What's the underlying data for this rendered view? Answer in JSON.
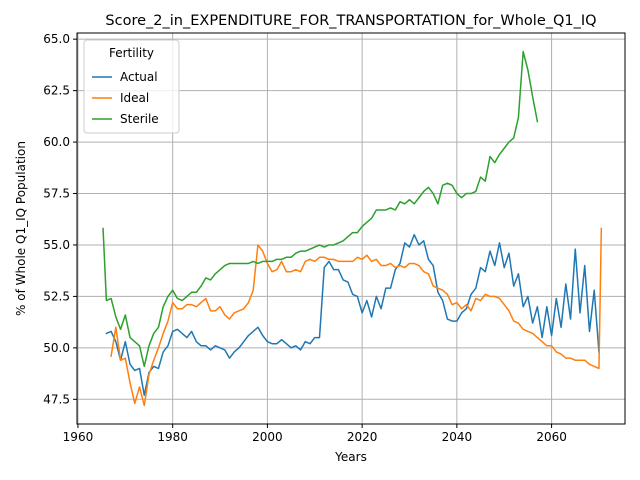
{
  "chart_data": {
    "type": "line",
    "title": "Score_2_in_EXPENDITURE_FOR_TRANSPORTATION_for_Whole_Q1_IQ",
    "xlabel": "Years",
    "ylabel": "% of Whole Q1_IQ Population",
    "xlim": [
      1959.8,
      2075.5
    ],
    "ylim": [
      46.3,
      65.3
    ],
    "xticks": [
      1960,
      1980,
      2000,
      2020,
      2040,
      2060
    ],
    "yticks": [
      47.5,
      50.0,
      52.5,
      55.0,
      57.5,
      60.0,
      62.5,
      65.0
    ],
    "grid": true,
    "legend": {
      "title": "Fertility",
      "placement": "upper-left"
    },
    "series": [
      {
        "name": "Actual",
        "color": "#1f77b4",
        "points": [
          [
            1966,
            50.7
          ],
          [
            1967,
            50.8
          ],
          [
            1968,
            50.3
          ],
          [
            1969,
            49.4
          ],
          [
            1970,
            50.3
          ],
          [
            1971,
            49.2
          ],
          [
            1972,
            48.9
          ],
          [
            1973,
            49.0
          ],
          [
            1974,
            47.7
          ],
          [
            1975,
            48.8
          ],
          [
            1976,
            49.1
          ],
          [
            1977,
            49.0
          ],
          [
            1978,
            49.8
          ],
          [
            1979,
            50.1
          ],
          [
            1980,
            50.8
          ],
          [
            1981,
            50.9
          ],
          [
            1982,
            50.7
          ],
          [
            1983,
            50.5
          ],
          [
            1984,
            50.8
          ],
          [
            1985,
            50.3
          ],
          [
            1986,
            50.1
          ],
          [
            1987,
            50.1
          ],
          [
            1988,
            49.9
          ],
          [
            1989,
            50.1
          ],
          [
            1990,
            50.0
          ],
          [
            1991,
            49.9
          ],
          [
            1992,
            49.5
          ],
          [
            1993,
            49.8
          ],
          [
            1994,
            50.0
          ],
          [
            1995,
            50.3
          ],
          [
            1996,
            50.6
          ],
          [
            1997,
            50.8
          ],
          [
            1998,
            51.0
          ],
          [
            1999,
            50.6
          ],
          [
            2000,
            50.3
          ],
          [
            2001,
            50.2
          ],
          [
            2002,
            50.2
          ],
          [
            2003,
            50.4
          ],
          [
            2004,
            50.2
          ],
          [
            2005,
            50.0
          ],
          [
            2006,
            50.1
          ],
          [
            2007,
            49.9
          ],
          [
            2008,
            50.3
          ],
          [
            2009,
            50.2
          ],
          [
            2010,
            50.5
          ],
          [
            2011,
            50.5
          ],
          [
            2012,
            53.9
          ],
          [
            2013,
            54.2
          ],
          [
            2014,
            53.8
          ],
          [
            2015,
            53.8
          ],
          [
            2016,
            53.3
          ],
          [
            2017,
            53.2
          ],
          [
            2018,
            52.6
          ],
          [
            2019,
            52.5
          ],
          [
            2020,
            51.7
          ],
          [
            2021,
            52.3
          ],
          [
            2022,
            51.5
          ],
          [
            2023,
            52.5
          ],
          [
            2024,
            51.9
          ],
          [
            2025,
            52.9
          ],
          [
            2026,
            52.9
          ],
          [
            2027,
            53.8
          ],
          [
            2028,
            54.1
          ],
          [
            2029,
            55.1
          ],
          [
            2030,
            54.9
          ],
          [
            2031,
            55.5
          ],
          [
            2032,
            55.0
          ],
          [
            2033,
            55.2
          ],
          [
            2034,
            54.3
          ],
          [
            2035,
            54.0
          ],
          [
            2036,
            52.7
          ],
          [
            2037,
            52.3
          ],
          [
            2038,
            51.4
          ],
          [
            2039,
            51.3
          ],
          [
            2040,
            51.3
          ],
          [
            2041,
            51.7
          ],
          [
            2042,
            51.9
          ],
          [
            2043,
            52.6
          ],
          [
            2044,
            52.9
          ],
          [
            2045,
            53.9
          ],
          [
            2046,
            53.7
          ],
          [
            2047,
            54.7
          ],
          [
            2048,
            54.0
          ],
          [
            2049,
            55.1
          ],
          [
            2050,
            53.9
          ],
          [
            2051,
            54.6
          ],
          [
            2052,
            53.0
          ],
          [
            2053,
            53.6
          ],
          [
            2054,
            52.0
          ],
          [
            2055,
            52.5
          ],
          [
            2056,
            51.2
          ],
          [
            2057,
            52.0
          ],
          [
            2058,
            50.5
          ],
          [
            2059,
            52.0
          ],
          [
            2060,
            50.6
          ],
          [
            2061,
            52.4
          ],
          [
            2062,
            51.0
          ],
          [
            2063,
            53.1
          ],
          [
            2064,
            51.4
          ],
          [
            2065,
            54.8
          ],
          [
            2066,
            51.7
          ],
          [
            2067,
            54.0
          ],
          [
            2068,
            50.8
          ],
          [
            2069,
            52.8
          ],
          [
            2070,
            49.8
          ]
        ]
      },
      {
        "name": "Ideal",
        "color": "#ff7f0e",
        "points": [
          [
            1967,
            49.6
          ],
          [
            1968,
            51.0
          ],
          [
            1969,
            49.4
          ],
          [
            1970,
            49.5
          ],
          [
            1971,
            48.3
          ],
          [
            1972,
            47.3
          ],
          [
            1973,
            48.1
          ],
          [
            1974,
            47.2
          ],
          [
            1975,
            48.7
          ],
          [
            1976,
            49.4
          ],
          [
            1977,
            50.0
          ],
          [
            1978,
            50.7
          ],
          [
            1979,
            51.3
          ],
          [
            1980,
            52.2
          ],
          [
            1981,
            51.9
          ],
          [
            1982,
            51.9
          ],
          [
            1983,
            52.1
          ],
          [
            1984,
            52.1
          ],
          [
            1985,
            52.0
          ],
          [
            1986,
            52.2
          ],
          [
            1987,
            52.4
          ],
          [
            1988,
            51.8
          ],
          [
            1989,
            51.8
          ],
          [
            1990,
            52.0
          ],
          [
            1991,
            51.6
          ],
          [
            1992,
            51.4
          ],
          [
            1993,
            51.7
          ],
          [
            1994,
            51.8
          ],
          [
            1995,
            51.9
          ],
          [
            1996,
            52.2
          ],
          [
            1997,
            52.8
          ],
          [
            1998,
            55.0
          ],
          [
            1999,
            54.7
          ],
          [
            2000,
            54.1
          ],
          [
            2001,
            53.7
          ],
          [
            2002,
            53.8
          ],
          [
            2003,
            54.2
          ],
          [
            2004,
            53.7
          ],
          [
            2005,
            53.7
          ],
          [
            2006,
            53.8
          ],
          [
            2007,
            53.7
          ],
          [
            2008,
            54.2
          ],
          [
            2009,
            54.3
          ],
          [
            2010,
            54.2
          ],
          [
            2011,
            54.4
          ],
          [
            2012,
            54.4
          ],
          [
            2013,
            54.3
          ],
          [
            2014,
            54.3
          ],
          [
            2015,
            54.2
          ],
          [
            2016,
            54.2
          ],
          [
            2017,
            54.2
          ],
          [
            2018,
            54.2
          ],
          [
            2019,
            54.4
          ],
          [
            2020,
            54.3
          ],
          [
            2021,
            54.5
          ],
          [
            2022,
            54.2
          ],
          [
            2023,
            54.3
          ],
          [
            2024,
            54.0
          ],
          [
            2025,
            54.0
          ],
          [
            2026,
            54.1
          ],
          [
            2027,
            53.9
          ],
          [
            2028,
            54.0
          ],
          [
            2029,
            53.9
          ],
          [
            2030,
            54.1
          ],
          [
            2031,
            54.1
          ],
          [
            2032,
            54.0
          ],
          [
            2033,
            53.7
          ],
          [
            2034,
            53.6
          ],
          [
            2035,
            53.0
          ],
          [
            2036,
            52.9
          ],
          [
            2037,
            52.8
          ],
          [
            2038,
            52.6
          ],
          [
            2039,
            52.1
          ],
          [
            2040,
            52.2
          ],
          [
            2041,
            51.9
          ],
          [
            2042,
            52.1
          ],
          [
            2043,
            51.8
          ],
          [
            2044,
            52.4
          ],
          [
            2045,
            52.3
          ],
          [
            2046,
            52.6
          ],
          [
            2047,
            52.5
          ],
          [
            2048,
            52.5
          ],
          [
            2049,
            52.4
          ],
          [
            2050,
            52.1
          ],
          [
            2051,
            51.8
          ],
          [
            2052,
            51.3
          ],
          [
            2053,
            51.2
          ],
          [
            2054,
            50.9
          ],
          [
            2055,
            50.8
          ],
          [
            2056,
            50.7
          ],
          [
            2057,
            50.5
          ],
          [
            2058,
            50.3
          ],
          [
            2059,
            50.1
          ],
          [
            2060,
            50.1
          ],
          [
            2061,
            49.8
          ],
          [
            2062,
            49.7
          ],
          [
            2063,
            49.5
          ],
          [
            2064,
            49.5
          ],
          [
            2065,
            49.4
          ],
          [
            2066,
            49.4
          ],
          [
            2067,
            49.4
          ],
          [
            2068,
            49.2
          ],
          [
            2069,
            49.1
          ],
          [
            2070,
            49.0
          ],
          [
            2070.5,
            55.8
          ]
        ]
      },
      {
        "name": "Sterile",
        "color": "#2ca02c",
        "points": [
          [
            1965.3,
            55.8
          ],
          [
            1966,
            52.3
          ],
          [
            1967,
            52.4
          ],
          [
            1968,
            51.5
          ],
          [
            1969,
            50.9
          ],
          [
            1970,
            51.6
          ],
          [
            1971,
            50.5
          ],
          [
            1972,
            50.3
          ],
          [
            1973,
            50.1
          ],
          [
            1974,
            49.1
          ],
          [
            1975,
            50.1
          ],
          [
            1976,
            50.7
          ],
          [
            1977,
            51.0
          ],
          [
            1978,
            52.0
          ],
          [
            1979,
            52.5
          ],
          [
            1980,
            52.8
          ],
          [
            1981,
            52.4
          ],
          [
            1982,
            52.3
          ],
          [
            1983,
            52.5
          ],
          [
            1984,
            52.7
          ],
          [
            1985,
            52.7
          ],
          [
            1986,
            53.0
          ],
          [
            1987,
            53.4
          ],
          [
            1988,
            53.3
          ],
          [
            1989,
            53.6
          ],
          [
            1990,
            53.8
          ],
          [
            1991,
            54.0
          ],
          [
            1992,
            54.1
          ],
          [
            1993,
            54.1
          ],
          [
            1994,
            54.1
          ],
          [
            1995,
            54.1
          ],
          [
            1996,
            54.1
          ],
          [
            1997,
            54.2
          ],
          [
            1998,
            54.1
          ],
          [
            1999,
            54.2
          ],
          [
            2000,
            54.2
          ],
          [
            2001,
            54.2
          ],
          [
            2002,
            54.3
          ],
          [
            2003,
            54.3
          ],
          [
            2004,
            54.4
          ],
          [
            2005,
            54.4
          ],
          [
            2006,
            54.6
          ],
          [
            2007,
            54.7
          ],
          [
            2008,
            54.7
          ],
          [
            2009,
            54.8
          ],
          [
            2010,
            54.9
          ],
          [
            2011,
            55.0
          ],
          [
            2012,
            54.9
          ],
          [
            2013,
            55.0
          ],
          [
            2014,
            55.0
          ],
          [
            2015,
            55.1
          ],
          [
            2016,
            55.2
          ],
          [
            2017,
            55.4
          ],
          [
            2018,
            55.6
          ],
          [
            2019,
            55.6
          ],
          [
            2020,
            55.9
          ],
          [
            2021,
            56.1
          ],
          [
            2022,
            56.3
          ],
          [
            2023,
            56.7
          ],
          [
            2024,
            56.7
          ],
          [
            2025,
            56.7
          ],
          [
            2026,
            56.8
          ],
          [
            2027,
            56.7
          ],
          [
            2028,
            57.1
          ],
          [
            2029,
            57.0
          ],
          [
            2030,
            57.2
          ],
          [
            2031,
            57.0
          ],
          [
            2032,
            57.3
          ],
          [
            2033,
            57.6
          ],
          [
            2034,
            57.8
          ],
          [
            2035,
            57.5
          ],
          [
            2036,
            57.0
          ],
          [
            2037,
            57.9
          ],
          [
            2038,
            58.0
          ],
          [
            2039,
            57.9
          ],
          [
            2040,
            57.5
          ],
          [
            2041,
            57.3
          ],
          [
            2042,
            57.5
          ],
          [
            2043,
            57.5
          ],
          [
            2044,
            57.6
          ],
          [
            2045,
            58.3
          ],
          [
            2046,
            58.1
          ],
          [
            2047,
            59.3
          ],
          [
            2048,
            59.0
          ],
          [
            2049,
            59.4
          ],
          [
            2050,
            59.7
          ],
          [
            2051,
            60.0
          ],
          [
            2052,
            60.2
          ],
          [
            2053,
            61.2
          ],
          [
            2054,
            64.4
          ],
          [
            2055,
            63.5
          ],
          [
            2056,
            62.2
          ],
          [
            2057,
            61.0
          ]
        ]
      }
    ]
  }
}
